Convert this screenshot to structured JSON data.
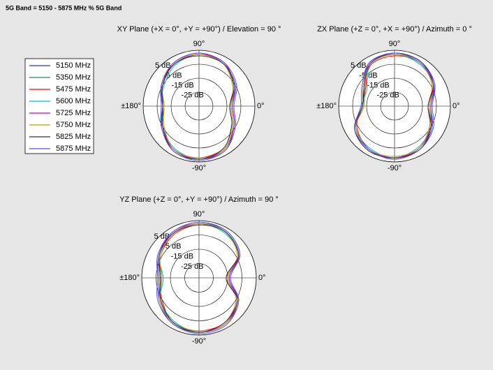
{
  "title": "5G Band = 5150 - 5875 MHz % 5G Band",
  "chart_data": [
    {
      "type": "polar",
      "title": "XY Plane (+X = 0°, +Y = +90°) / Elevation = 90 °",
      "theta": [
        0,
        30,
        60,
        90,
        120,
        150,
        180,
        210,
        240,
        270,
        300,
        330
      ],
      "rlim": [
        -35,
        5
      ],
      "rticks": [
        {
          "value": 5,
          "label": "5 dB"
        },
        {
          "value": -5,
          "label": "-5 dB"
        },
        {
          "value": -15,
          "label": "-15 dB"
        },
        {
          "value": -25,
          "label": "-25 dB"
        }
      ],
      "thetaticks": [
        {
          "value": 90,
          "label": "90°"
        },
        {
          "value": 0,
          "label": "0°"
        },
        {
          "value": -90,
          "label": "-90°"
        },
        {
          "value": 180,
          "label": "±180°"
        }
      ],
      "series": [
        {
          "name": "5150 MHz",
          "color": "#3333cc",
          "values": [
            -11,
            -5,
            0,
            2,
            0,
            -4,
            -9,
            -6,
            1,
            3,
            2,
            -6
          ]
        },
        {
          "name": "5350 MHz",
          "color": "#2e8b57",
          "values": [
            -12,
            -6,
            1,
            2,
            0,
            -5,
            -10,
            -5,
            1,
            3,
            1,
            -7
          ]
        },
        {
          "name": "5475 MHz",
          "color": "#ff0000",
          "values": [
            -13,
            -7,
            0,
            3,
            1,
            -5,
            -9,
            -4,
            1,
            2,
            0,
            -8
          ]
        },
        {
          "name": "5600 MHz",
          "color": "#00bfbf",
          "values": [
            -12,
            -6,
            0,
            2,
            -1,
            -6,
            -8,
            -5,
            0,
            3,
            1,
            -7
          ]
        },
        {
          "name": "5725 MHz",
          "color": "#cc00cc",
          "values": [
            -11,
            -6,
            1,
            2,
            0,
            -5,
            -9,
            -5,
            1,
            3,
            1,
            -6
          ]
        },
        {
          "name": "5750 MHz",
          "color": "#b8a000",
          "values": [
            -12,
            -7,
            0,
            2,
            1,
            -4,
            -10,
            -6,
            1,
            2,
            1,
            -7
          ]
        },
        {
          "name": "5825 MHz",
          "color": "#333333",
          "values": [
            -13,
            -6,
            0,
            1,
            0,
            -5,
            -9,
            -5,
            2,
            3,
            0,
            -8
          ]
        },
        {
          "name": "5875 MHz",
          "color": "#5050ff",
          "values": [
            -10,
            -4,
            1,
            3,
            1,
            -4,
            -8,
            -4,
            2,
            4,
            2,
            -5
          ]
        }
      ]
    },
    {
      "type": "polar",
      "title": "ZX Plane (+Z = 0°, +X = +90°) / Azimuth = 0 °",
      "theta": [
        0,
        30,
        60,
        90,
        120,
        150,
        180,
        210,
        240,
        270,
        300,
        330
      ],
      "rlim": [
        -35,
        5
      ],
      "rticks": [
        {
          "value": 5,
          "label": "5 dB"
        },
        {
          "value": -5,
          "label": "-5 dB"
        },
        {
          "value": -15,
          "label": "-15 dB"
        },
        {
          "value": -25,
          "label": "-25 dB"
        }
      ],
      "thetaticks": [
        {
          "value": 90,
          "label": "90°"
        },
        {
          "value": 0,
          "label": "0°"
        },
        {
          "value": -90,
          "label": "-90°"
        },
        {
          "value": 180,
          "label": "±180°"
        }
      ],
      "series": [
        {
          "name": "5150 MHz",
          "color": "#3333cc",
          "values": [
            -9,
            -2,
            2,
            3,
            1,
            -9,
            -12,
            -2,
            2,
            2,
            1,
            -4
          ]
        },
        {
          "name": "5350 MHz",
          "color": "#2e8b57",
          "values": [
            -10,
            -3,
            1,
            2,
            0,
            -10,
            -13,
            -3,
            1,
            2,
            0,
            -5
          ]
        },
        {
          "name": "5475 MHz",
          "color": "#ff0000",
          "values": [
            -11,
            -4,
            1,
            1,
            -1,
            -11,
            -12,
            -4,
            1,
            3,
            0,
            -6
          ]
        },
        {
          "name": "5600 MHz",
          "color": "#00bfbf",
          "values": [
            -10,
            -3,
            0,
            2,
            0,
            -12,
            -11,
            -3,
            0,
            2,
            -1,
            -5
          ]
        },
        {
          "name": "5725 MHz",
          "color": "#cc00cc",
          "values": [
            -9,
            -3,
            1,
            2,
            1,
            -10,
            -12,
            -3,
            1,
            2,
            0,
            -5
          ]
        },
        {
          "name": "5750 MHz",
          "color": "#b8a000",
          "values": [
            -10,
            -4,
            1,
            2,
            0,
            -9,
            -13,
            -3,
            1,
            1,
            0,
            -6
          ]
        },
        {
          "name": "5825 MHz",
          "color": "#333333",
          "values": [
            -11,
            -3,
            2,
            3,
            0,
            -10,
            -12,
            -2,
            2,
            2,
            1,
            -5
          ]
        },
        {
          "name": "5875 MHz",
          "color": "#5050ff",
          "values": [
            -8,
            -2,
            1,
            3,
            1,
            -8,
            -11,
            -2,
            1,
            3,
            1,
            -3
          ]
        }
      ]
    },
    {
      "type": "polar",
      "title": "YZ Plane (+Z = 0°, +Y = +90°) / Azimuth = 90 °",
      "theta": [
        0,
        30,
        60,
        90,
        120,
        150,
        180,
        210,
        240,
        270,
        300,
        330
      ],
      "rlim": [
        -35,
        5
      ],
      "rticks": [
        {
          "value": 5,
          "label": "5 dB"
        },
        {
          "value": -5,
          "label": "-5 dB"
        },
        {
          "value": -15,
          "label": "-15 dB"
        },
        {
          "value": -25,
          "label": "-25 dB"
        }
      ],
      "thetaticks": [
        {
          "value": 90,
          "label": "90°"
        },
        {
          "value": 0,
          "label": "0°"
        },
        {
          "value": -90,
          "label": "-90°"
        },
        {
          "value": 180,
          "label": "±180°"
        }
      ],
      "series": [
        {
          "name": "5150 MHz",
          "color": "#3333cc",
          "values": [
            -14,
            -2,
            3,
            3,
            1,
            -2,
            -7,
            -3,
            2,
            3,
            2,
            -3
          ]
        },
        {
          "name": "5350 MHz",
          "color": "#2e8b57",
          "values": [
            -15,
            -3,
            2,
            3,
            1,
            -3,
            -9,
            -4,
            1,
            3,
            2,
            -4
          ]
        },
        {
          "name": "5475 MHz",
          "color": "#ff0000",
          "values": [
            -16,
            -4,
            2,
            2,
            0,
            -4,
            -8,
            -5,
            1,
            2,
            1,
            -5
          ]
        },
        {
          "name": "5600 MHz",
          "color": "#00bfbf",
          "values": [
            -15,
            -3,
            1,
            3,
            1,
            -3,
            -10,
            -4,
            0,
            3,
            2,
            -4
          ]
        },
        {
          "name": "5725 MHz",
          "color": "#cc00cc",
          "values": [
            -14,
            -3,
            2,
            3,
            2,
            -3,
            -8,
            -4,
            1,
            3,
            2,
            -4
          ]
        },
        {
          "name": "5750 MHz",
          "color": "#b8a000",
          "values": [
            -15,
            -4,
            2,
            3,
            1,
            -4,
            -9,
            -3,
            1,
            2,
            2,
            -5
          ]
        },
        {
          "name": "5825 MHz",
          "color": "#333333",
          "values": [
            -16,
            -3,
            2,
            2,
            1,
            -3,
            -8,
            -4,
            1,
            3,
            1,
            -4
          ]
        },
        {
          "name": "5875 MHz",
          "color": "#5050ff",
          "values": [
            -13,
            -2,
            3,
            4,
            2,
            -2,
            -6,
            -2,
            2,
            4,
            3,
            -3
          ]
        }
      ]
    }
  ]
}
